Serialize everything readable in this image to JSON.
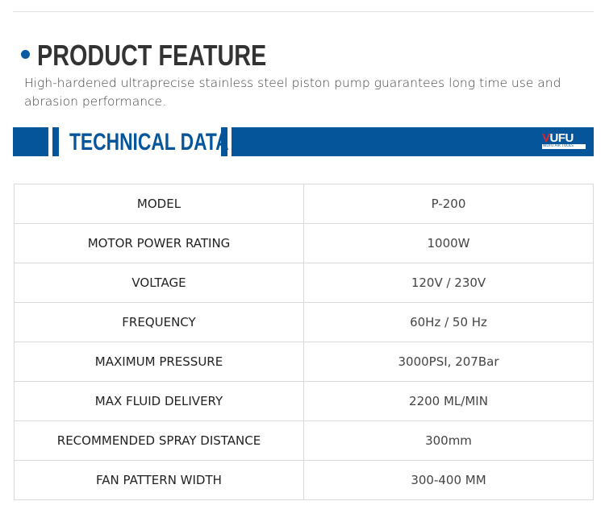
{
  "section": {
    "title": "PRODUCT FEATURE",
    "description": "High-hardened ultraprecise stainless steel piston pump guarantees long time use and abrasion performance."
  },
  "banner": {
    "title": "TECHNICAL DATA",
    "logo_mark": "WUFU",
    "logo_sub": "WUFU AIR TOOLS",
    "color": "#05559b"
  },
  "specs": [
    {
      "label": "MODEL",
      "value": "P-200"
    },
    {
      "label": "MOTOR POWER RATING",
      "value": "1000W"
    },
    {
      "label": "VOLTAGE",
      "value": "120V / 230V"
    },
    {
      "label": "FREQUENCY",
      "value": "60Hz / 50 Hz"
    },
    {
      "label": "MAXIMUM PRESSURE",
      "value": "3000PSI, 207Bar"
    },
    {
      "label": "MAX FLUID DELIVERY",
      "value": "2200 ML/MIN"
    },
    {
      "label": "RECOMMENDED SPRAY DISTANCE",
      "value": "300mm"
    },
    {
      "label": "FAN PATTERN WIDTH",
      "value": "300-400 MM"
    }
  ]
}
